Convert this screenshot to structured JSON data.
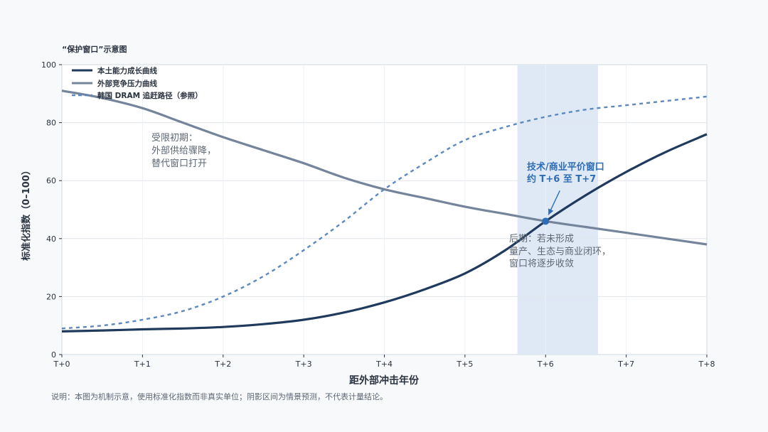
{
  "chart_data": {
    "type": "line",
    "title": "“保护窗口”示意图",
    "xlabel": "距外部冲击年份",
    "ylabel": "标准化指数（0–100）",
    "x": [
      0,
      0.5,
      1,
      1.5,
      2,
      2.5,
      3,
      3.5,
      4,
      4.5,
      5,
      5.5,
      6,
      6.5,
      7,
      7.5,
      8
    ],
    "x_tick_labels": [
      "T+0",
      "T+1",
      "T+2",
      "T+3",
      "T+4",
      "T+5",
      "T+6",
      "T+7",
      "T+8"
    ],
    "xlim": [
      0,
      8
    ],
    "ylim": [
      0,
      100
    ],
    "y_ticks": [
      0,
      20,
      40,
      60,
      80,
      100
    ],
    "grid": true,
    "legend_position": "top-left",
    "series": [
      {
        "name": "本土能力成长曲线",
        "color": "#1f3a5c",
        "style": "solid",
        "values": [
          8,
          8.3,
          8.7,
          9,
          9.5,
          10.5,
          12,
          14.5,
          18,
          22.5,
          28,
          36,
          46,
          55,
          63,
          70,
          76
        ]
      },
      {
        "name": "外部竞争压力曲线",
        "color": "#74849b",
        "style": "solid",
        "values": [
          91,
          88.5,
          85,
          80,
          75,
          70.5,
          66,
          61,
          57,
          54,
          51,
          48.5,
          46,
          44,
          42,
          40,
          38
        ]
      },
      {
        "name": "韩国 DRAM 追赶路径（参照）",
        "color": "#5b88bf",
        "style": "dashed",
        "values": [
          9,
          10,
          12,
          15,
          20,
          27,
          36,
          46,
          57,
          66,
          74,
          78.5,
          82,
          84.5,
          86,
          87.5,
          89
        ]
      }
    ],
    "shaded_region": {
      "x_start": 5.65,
      "x_end": 6.65,
      "color": "#dfe9f5"
    },
    "intersection_point": {
      "x": 6,
      "y": 46,
      "color": "#2f6db5"
    },
    "annotations": {
      "early": [
        "受限初期：",
        "外部供给骤降，",
        "替代窗口打开"
      ],
      "later": [
        "后期：若未形成",
        "量产、生态与商业闭环，",
        "窗口将逐步收敛"
      ],
      "highlight": [
        "技术/商业平价窗口",
        "约 T+6 至 T+7"
      ]
    },
    "footnote": "说明：本图为机制示意，使用标准化指数而非真实单位；阴影区间为情景预测，不代表计量结论。"
  }
}
